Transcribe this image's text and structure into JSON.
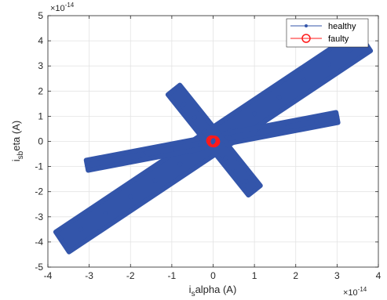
{
  "chart_data": {
    "type": "scatter",
    "xlim": [
      -4,
      4
    ],
    "ylim": [
      -5,
      5
    ],
    "x_ticks": [
      -4,
      -3,
      -2,
      -1,
      0,
      1,
      2,
      3,
      4
    ],
    "y_ticks": [
      -5,
      -4,
      -3,
      -2,
      -1,
      0,
      1,
      2,
      3,
      4,
      5
    ],
    "x_tick_labels": [
      "-4",
      "-3",
      "-2",
      "-1",
      "0",
      "1",
      "2",
      "3",
      "4"
    ],
    "y_tick_labels": [
      "-5",
      "-4",
      "-3",
      "-2",
      "-1",
      "0",
      "1",
      "2",
      "3",
      "4",
      "5"
    ],
    "x_exponent": {
      "base": "×10",
      "power": "-14"
    },
    "y_exponent": {
      "base": "×10",
      "power": "-14"
    },
    "xlabel": {
      "main": "i",
      "sub": "s",
      "rest": "alpha (A)"
    },
    "ylabel": {
      "main": "i",
      "sub": "sb",
      "rest": "eta (A)"
    },
    "grid": true,
    "legend_position": "top-right",
    "series": [
      {
        "name": "healthy",
        "color": "#3355aa",
        "marker": "filled-dot",
        "bands": [
          {
            "from": [
              -3.65,
              -4.0
            ],
            "to": [
              3.65,
              4.0
            ],
            "width": 0.55
          },
          {
            "from": [
              -3.05,
              -0.95
            ],
            "to": [
              3.0,
              0.95
            ],
            "width": 0.32
          },
          {
            "from": [
              -0.95,
              2.05
            ],
            "to": [
              1.0,
              -1.95
            ],
            "width": 0.32
          }
        ],
        "points": [
          [
            -3.65,
            -4.0
          ],
          [
            -3.2,
            -3.5
          ],
          [
            -2.6,
            -2.85
          ],
          [
            -2.0,
            -2.2
          ],
          [
            -1.4,
            -1.55
          ],
          [
            -0.8,
            -0.9
          ],
          [
            -0.2,
            -0.22
          ],
          [
            0.4,
            0.44
          ],
          [
            1.0,
            1.1
          ],
          [
            1.6,
            1.76
          ],
          [
            2.2,
            2.42
          ],
          [
            2.8,
            3.08
          ],
          [
            3.3,
            3.62
          ],
          [
            3.65,
            4.0
          ],
          [
            -3.05,
            -0.95
          ],
          [
            -2.4,
            -0.75
          ],
          [
            -1.7,
            -0.53
          ],
          [
            -1.0,
            -0.3
          ],
          [
            -0.3,
            -0.09
          ],
          [
            0.4,
            0.12
          ],
          [
            1.1,
            0.34
          ],
          [
            1.8,
            0.56
          ],
          [
            2.5,
            0.78
          ],
          [
            3.0,
            0.95
          ],
          [
            -0.95,
            2.05
          ],
          [
            -0.7,
            1.5
          ],
          [
            -0.45,
            0.95
          ],
          [
            -0.2,
            0.4
          ],
          [
            0.05,
            -0.12
          ],
          [
            0.3,
            -0.66
          ],
          [
            0.55,
            -1.2
          ],
          [
            0.8,
            -1.6
          ],
          [
            1.0,
            -1.95
          ]
        ]
      },
      {
        "name": "faulty",
        "color": "#ff1a1a",
        "marker": "open-circle",
        "points": [
          [
            0.0,
            0.0
          ],
          [
            0.03,
            0.02
          ],
          [
            -0.03,
            0.01
          ],
          [
            0.02,
            -0.03
          ],
          [
            -0.02,
            -0.02
          ],
          [
            0.04,
            -0.01
          ],
          [
            -0.04,
            0.03
          ]
        ]
      }
    ]
  }
}
